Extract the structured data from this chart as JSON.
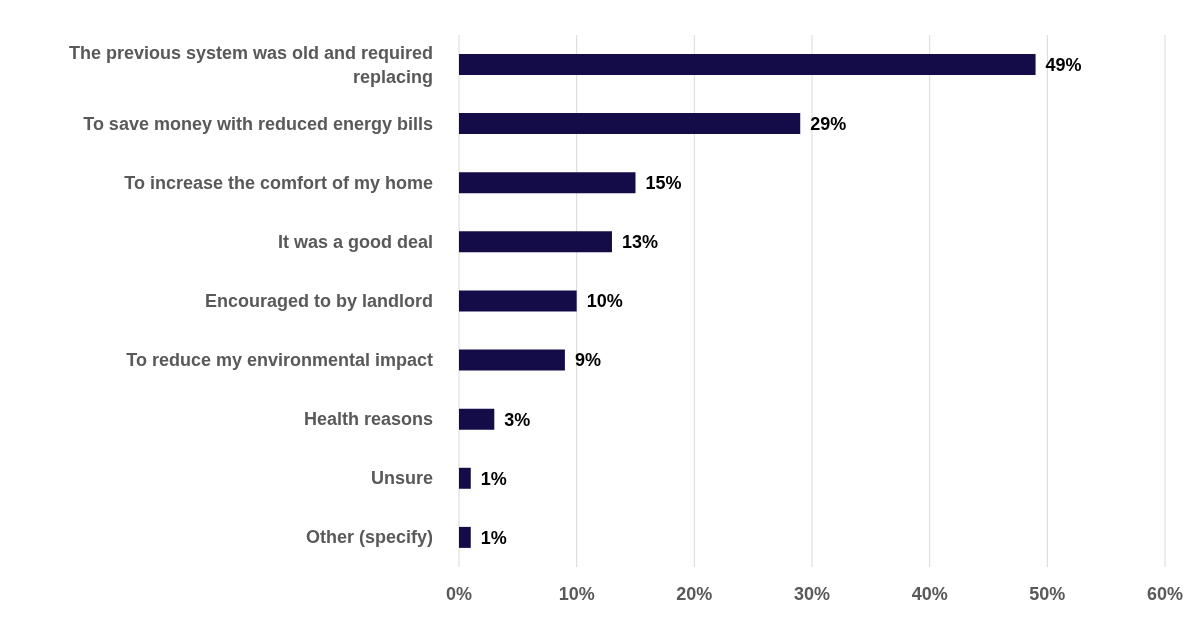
{
  "chart_data": {
    "type": "bar",
    "orientation": "horizontal",
    "categories": [
      "The previous system was old and required replacing",
      "To save money with reduced energy bills",
      "To increase the comfort of my home",
      "It was a good deal",
      "Encouraged to by landlord",
      "To reduce my environmental impact",
      "Health reasons",
      "Unsure",
      "Other (specify)"
    ],
    "values": [
      49,
      29,
      15,
      13,
      10,
      9,
      3,
      1,
      1
    ],
    "value_labels": [
      "49%",
      "29%",
      "15%",
      "13%",
      "10%",
      "9%",
      "3%",
      "1%",
      "1%"
    ],
    "color": "#140c48",
    "xlim": [
      0,
      60
    ],
    "xticks": [
      {
        "value": 0,
        "label": "0%"
      },
      {
        "value": 10,
        "label": "10%"
      },
      {
        "value": 20,
        "label": "20%"
      },
      {
        "value": 30,
        "label": "30%"
      },
      {
        "value": 40,
        "label": "40%"
      },
      {
        "value": 50,
        "label": "50%"
      },
      {
        "value": 60,
        "label": "60%"
      }
    ],
    "grid": "x",
    "legend": false
  }
}
